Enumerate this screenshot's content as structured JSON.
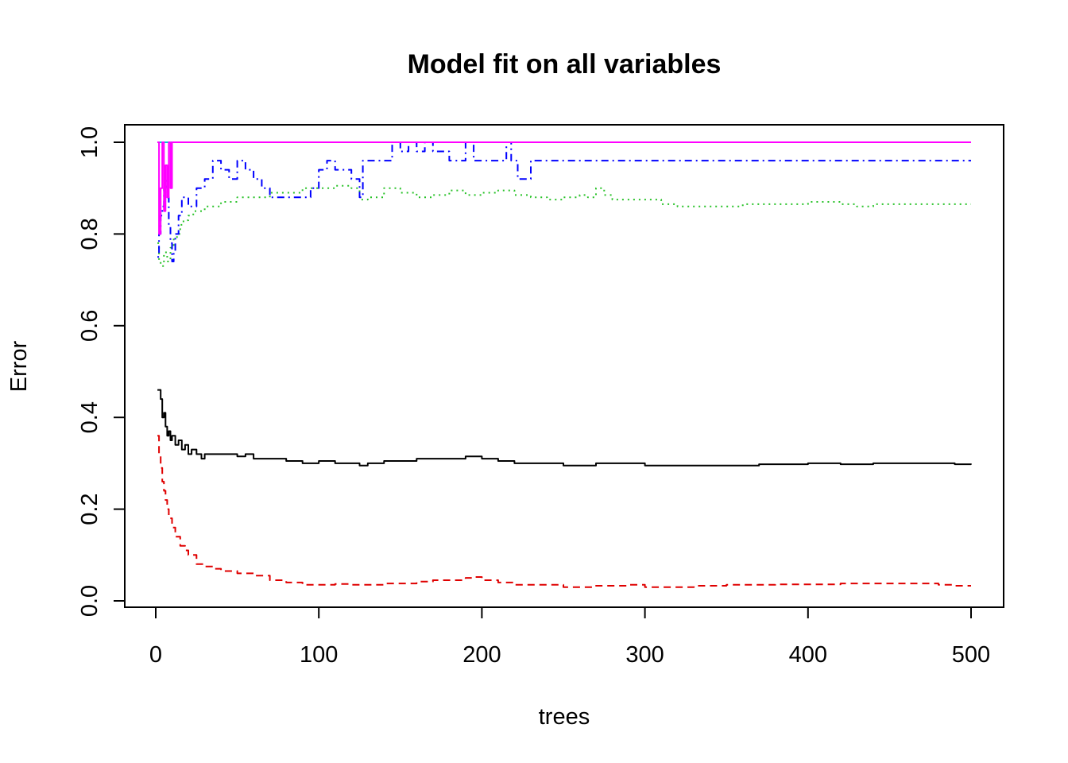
{
  "chart_data": {
    "type": "line",
    "title": "Model fit on all variables",
    "xlabel": "trees",
    "ylabel": "Error",
    "xlim": [
      0,
      500
    ],
    "ylim": [
      0.0,
      1.0
    ],
    "x_ticks": [
      0,
      100,
      200,
      300,
      400,
      500
    ],
    "x_tick_labels": [
      "0",
      "100",
      "200",
      "300",
      "400",
      "500"
    ],
    "y_ticks": [
      0.0,
      0.2,
      0.4,
      0.6,
      0.8,
      1.0
    ],
    "y_tick_labels": [
      "0.0",
      "0.2",
      "0.4",
      "0.6",
      "0.8",
      "1.0"
    ],
    "grid": false,
    "legend": "none",
    "series": [
      {
        "color": "#000000",
        "dash": "solid",
        "points": [
          [
            1,
            0.46
          ],
          [
            3,
            0.44
          ],
          [
            4,
            0.4
          ],
          [
            5,
            0.41
          ],
          [
            6,
            0.38
          ],
          [
            7,
            0.36
          ],
          [
            8,
            0.37
          ],
          [
            9,
            0.35
          ],
          [
            10,
            0.36
          ],
          [
            12,
            0.34
          ],
          [
            14,
            0.35
          ],
          [
            16,
            0.33
          ],
          [
            18,
            0.34
          ],
          [
            20,
            0.32
          ],
          [
            22,
            0.33
          ],
          [
            25,
            0.32
          ],
          [
            28,
            0.31
          ],
          [
            30,
            0.32
          ],
          [
            35,
            0.32
          ],
          [
            40,
            0.32
          ],
          [
            45,
            0.32
          ],
          [
            50,
            0.315
          ],
          [
            55,
            0.32
          ],
          [
            60,
            0.31
          ],
          [
            70,
            0.31
          ],
          [
            80,
            0.305
          ],
          [
            90,
            0.3
          ],
          [
            100,
            0.305
          ],
          [
            110,
            0.3
          ],
          [
            120,
            0.3
          ],
          [
            125,
            0.295
          ],
          [
            130,
            0.3
          ],
          [
            140,
            0.305
          ],
          [
            150,
            0.305
          ],
          [
            160,
            0.31
          ],
          [
            170,
            0.31
          ],
          [
            180,
            0.31
          ],
          [
            190,
            0.315
          ],
          [
            200,
            0.31
          ],
          [
            210,
            0.305
          ],
          [
            220,
            0.3
          ],
          [
            230,
            0.3
          ],
          [
            240,
            0.3
          ],
          [
            250,
            0.295
          ],
          [
            260,
            0.295
          ],
          [
            270,
            0.3
          ],
          [
            280,
            0.3
          ],
          [
            290,
            0.3
          ],
          [
            300,
            0.295
          ],
          [
            310,
            0.295
          ],
          [
            320,
            0.295
          ],
          [
            330,
            0.295
          ],
          [
            340,
            0.295
          ],
          [
            350,
            0.295
          ],
          [
            360,
            0.295
          ],
          [
            370,
            0.298
          ],
          [
            380,
            0.298
          ],
          [
            390,
            0.298
          ],
          [
            400,
            0.3
          ],
          [
            420,
            0.298
          ],
          [
            440,
            0.3
          ],
          [
            460,
            0.3
          ],
          [
            480,
            0.3
          ],
          [
            490,
            0.298
          ],
          [
            500,
            0.297
          ]
        ]
      },
      {
        "color": "#df0000",
        "dash": "dashed",
        "points": [
          [
            1,
            0.36
          ],
          [
            2,
            0.32
          ],
          [
            3,
            0.29
          ],
          [
            4,
            0.26
          ],
          [
            5,
            0.24
          ],
          [
            6,
            0.22
          ],
          [
            7,
            0.2
          ],
          [
            8,
            0.18
          ],
          [
            10,
            0.16
          ],
          [
            12,
            0.14
          ],
          [
            15,
            0.12
          ],
          [
            18,
            0.11
          ],
          [
            20,
            0.1
          ],
          [
            25,
            0.08
          ],
          [
            30,
            0.075
          ],
          [
            35,
            0.07
          ],
          [
            40,
            0.065
          ],
          [
            50,
            0.06
          ],
          [
            60,
            0.055
          ],
          [
            70,
            0.045
          ],
          [
            80,
            0.04
          ],
          [
            90,
            0.035
          ],
          [
            100,
            0.035
          ],
          [
            110,
            0.037
          ],
          [
            120,
            0.035
          ],
          [
            130,
            0.035
          ],
          [
            140,
            0.038
          ],
          [
            150,
            0.038
          ],
          [
            160,
            0.042
          ],
          [
            170,
            0.045
          ],
          [
            180,
            0.045
          ],
          [
            190,
            0.05
          ],
          [
            195,
            0.052
          ],
          [
            200,
            0.045
          ],
          [
            210,
            0.04
          ],
          [
            220,
            0.035
          ],
          [
            230,
            0.035
          ],
          [
            240,
            0.035
          ],
          [
            250,
            0.03
          ],
          [
            260,
            0.03
          ],
          [
            270,
            0.033
          ],
          [
            280,
            0.033
          ],
          [
            290,
            0.035
          ],
          [
            300,
            0.03
          ],
          [
            310,
            0.03
          ],
          [
            320,
            0.03
          ],
          [
            330,
            0.033
          ],
          [
            340,
            0.033
          ],
          [
            350,
            0.035
          ],
          [
            360,
            0.035
          ],
          [
            370,
            0.035
          ],
          [
            380,
            0.036
          ],
          [
            390,
            0.036
          ],
          [
            400,
            0.036
          ],
          [
            420,
            0.038
          ],
          [
            440,
            0.038
          ],
          [
            460,
            0.038
          ],
          [
            480,
            0.035
          ],
          [
            490,
            0.033
          ],
          [
            500,
            0.033
          ]
        ]
      },
      {
        "color": "#28c228",
        "dash": "dotted",
        "points": [
          [
            1,
            0.78
          ],
          [
            2,
            0.74
          ],
          [
            3,
            0.73
          ],
          [
            5,
            0.76
          ],
          [
            7,
            0.74
          ],
          [
            9,
            0.77
          ],
          [
            11,
            0.79
          ],
          [
            13,
            0.8
          ],
          [
            15,
            0.82
          ],
          [
            17,
            0.83
          ],
          [
            20,
            0.84
          ],
          [
            23,
            0.85
          ],
          [
            26,
            0.85
          ],
          [
            30,
            0.86
          ],
          [
            35,
            0.86
          ],
          [
            40,
            0.87
          ],
          [
            45,
            0.87
          ],
          [
            50,
            0.88
          ],
          [
            60,
            0.88
          ],
          [
            70,
            0.89
          ],
          [
            80,
            0.89
          ],
          [
            90,
            0.9
          ],
          [
            100,
            0.9
          ],
          [
            110,
            0.905
          ],
          [
            120,
            0.9
          ],
          [
            125,
            0.875
          ],
          [
            130,
            0.88
          ],
          [
            140,
            0.9
          ],
          [
            150,
            0.89
          ],
          [
            160,
            0.88
          ],
          [
            170,
            0.885
          ],
          [
            180,
            0.895
          ],
          [
            190,
            0.885
          ],
          [
            200,
            0.89
          ],
          [
            210,
            0.895
          ],
          [
            220,
            0.885
          ],
          [
            230,
            0.88
          ],
          [
            240,
            0.875
          ],
          [
            250,
            0.88
          ],
          [
            260,
            0.885
          ],
          [
            265,
            0.88
          ],
          [
            270,
            0.9
          ],
          [
            275,
            0.885
          ],
          [
            280,
            0.875
          ],
          [
            290,
            0.875
          ],
          [
            300,
            0.875
          ],
          [
            310,
            0.865
          ],
          [
            320,
            0.86
          ],
          [
            330,
            0.86
          ],
          [
            340,
            0.86
          ],
          [
            350,
            0.86
          ],
          [
            360,
            0.865
          ],
          [
            370,
            0.865
          ],
          [
            380,
            0.865
          ],
          [
            390,
            0.865
          ],
          [
            400,
            0.87
          ],
          [
            420,
            0.865
          ],
          [
            430,
            0.86
          ],
          [
            440,
            0.865
          ],
          [
            460,
            0.865
          ],
          [
            480,
            0.865
          ],
          [
            500,
            0.865
          ]
        ]
      },
      {
        "color": "#0000ff",
        "dash": "dashdot",
        "points": [
          [
            1,
            0.75
          ],
          [
            2,
            0.8
          ],
          [
            3,
            0.84
          ],
          [
            4,
            0.86
          ],
          [
            5,
            0.9
          ],
          [
            6,
            0.92
          ],
          [
            7,
            0.88
          ],
          [
            8,
            0.82
          ],
          [
            9,
            0.78
          ],
          [
            10,
            0.74
          ],
          [
            11,
            0.76
          ],
          [
            12,
            0.8
          ],
          [
            14,
            0.84
          ],
          [
            16,
            0.88
          ],
          [
            20,
            0.86
          ],
          [
            25,
            0.9
          ],
          [
            30,
            0.92
          ],
          [
            35,
            0.96
          ],
          [
            40,
            0.94
          ],
          [
            45,
            0.92
          ],
          [
            50,
            0.96
          ],
          [
            55,
            0.94
          ],
          [
            60,
            0.92
          ],
          [
            65,
            0.9
          ],
          [
            70,
            0.88
          ],
          [
            80,
            0.88
          ],
          [
            90,
            0.88
          ],
          [
            95,
            0.9
          ],
          [
            100,
            0.94
          ],
          [
            105,
            0.96
          ],
          [
            110,
            0.94
          ],
          [
            120,
            0.92
          ],
          [
            125,
            0.88
          ],
          [
            127,
            0.96
          ],
          [
            130,
            0.96
          ],
          [
            140,
            0.96
          ],
          [
            145,
            1.0
          ],
          [
            150,
            0.98
          ],
          [
            155,
            1.0
          ],
          [
            160,
            0.98
          ],
          [
            165,
            1.0
          ],
          [
            170,
            0.98
          ],
          [
            180,
            0.96
          ],
          [
            190,
            1.0
          ],
          [
            195,
            0.96
          ],
          [
            210,
            0.96
          ],
          [
            215,
            1.0
          ],
          [
            218,
            0.96
          ],
          [
            222,
            0.92
          ],
          [
            228,
            0.92
          ],
          [
            230,
            0.96
          ],
          [
            250,
            0.96
          ],
          [
            300,
            0.96
          ],
          [
            350,
            0.96
          ],
          [
            400,
            0.96
          ],
          [
            450,
            0.96
          ],
          [
            500,
            0.96
          ]
        ]
      },
      {
        "color": "#00d0d0",
        "dash": "solid",
        "points": [
          [
            1,
            1.0
          ],
          [
            2,
            1.0
          ],
          [
            3,
            1.0
          ],
          [
            5,
            1.0
          ],
          [
            8,
            1.0
          ],
          [
            10,
            1.0
          ],
          [
            50,
            1.0
          ],
          [
            100,
            1.0
          ],
          [
            200,
            1.0
          ],
          [
            300,
            1.0
          ],
          [
            400,
            1.0
          ],
          [
            500,
            1.0
          ]
        ]
      },
      {
        "color": "#ff00ff",
        "dash": "solid",
        "points": [
          [
            1,
            1.0
          ],
          [
            2,
            0.8
          ],
          [
            3,
            0.9
          ],
          [
            4,
            1.0
          ],
          [
            5,
            0.85
          ],
          [
            6,
            0.95
          ],
          [
            7,
            0.88
          ],
          [
            8,
            1.0
          ],
          [
            9,
            0.9
          ],
          [
            10,
            1.0
          ],
          [
            11,
            1.0
          ],
          [
            20,
            1.0
          ],
          [
            50,
            1.0
          ],
          [
            100,
            1.0
          ],
          [
            200,
            1.0
          ],
          [
            300,
            1.0
          ],
          [
            400,
            1.0
          ],
          [
            500,
            1.0
          ]
        ]
      }
    ]
  }
}
